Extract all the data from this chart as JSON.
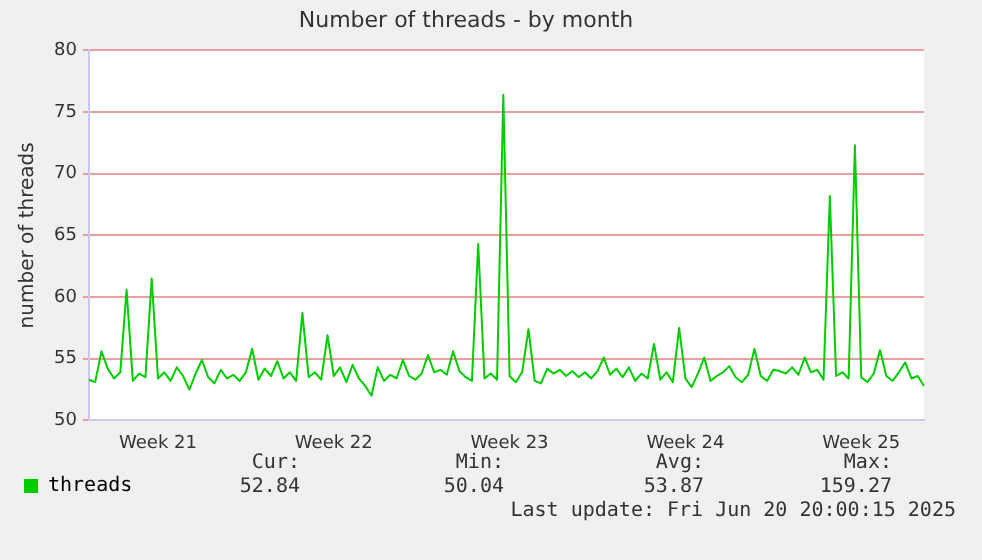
{
  "chart_data": {
    "type": "line",
    "title": "Number of threads - by month",
    "ylabel": "number of threads",
    "categories": [
      null,
      null,
      null,
      null,
      null,
      null,
      null,
      null,
      null,
      null,
      null,
      "Week 21",
      null,
      null,
      null,
      null,
      null,
      null,
      null,
      null,
      null,
      null,
      null,
      null,
      null,
      null,
      null,
      null,
      null,
      null,
      null,
      null,
      null,
      null,
      null,
      null,
      null,
      null,
      null,
      "Week 22",
      null,
      null,
      null,
      null,
      null,
      null,
      null,
      null,
      null,
      null,
      null,
      null,
      null,
      null,
      null,
      null,
      null,
      null,
      null,
      null,
      null,
      null,
      null,
      null,
      null,
      null,
      null,
      "Week 23",
      null,
      null,
      null,
      null,
      null,
      null,
      null,
      null,
      null,
      null,
      null,
      null,
      null,
      null,
      null,
      null,
      null,
      null,
      null,
      null,
      null,
      null,
      null,
      null,
      null,
      null,
      null,
      "Week 24",
      null,
      null,
      null,
      null,
      null,
      null,
      null,
      null,
      null,
      null,
      null,
      null,
      null,
      null,
      null,
      null,
      null,
      null,
      null,
      null,
      null,
      null,
      null,
      null,
      null,
      null,
      null,
      "Week 25",
      null,
      null,
      null,
      null,
      null,
      null,
      null,
      null,
      null,
      null
    ],
    "ylim": [
      50,
      80
    ],
    "yticks": [
      50,
      55,
      60,
      65,
      70,
      75,
      80
    ],
    "grid": "y",
    "legend": "bottom left",
    "marker": "none",
    "line_style": "solid",
    "series": [
      {
        "name": "threads",
        "color": "#00cc00",
        "values": [
          53.3,
          53.1,
          55.6,
          54.2,
          53.4,
          53.9,
          60.6,
          53.2,
          53.8,
          53.5,
          61.5,
          53.4,
          53.9,
          53.2,
          54.3,
          53.6,
          52.5,
          53.8,
          54.9,
          53.5,
          53.0,
          54.1,
          53.4,
          53.7,
          53.2,
          53.9,
          55.8,
          53.3,
          54.2,
          53.6,
          54.8,
          53.4,
          53.9,
          53.2,
          58.7,
          53.5,
          53.9,
          53.3,
          56.9,
          53.6,
          54.3,
          53.1,
          54.5,
          53.4,
          52.8,
          52.0,
          54.3,
          53.2,
          53.7,
          53.4,
          54.9,
          53.6,
          53.3,
          53.8,
          55.3,
          53.9,
          54.1,
          53.7,
          55.6,
          54.0,
          53.5,
          53.2,
          64.3,
          53.4,
          53.8,
          53.3,
          76.4,
          53.6,
          53.1,
          53.9,
          57.4,
          53.2,
          53.0,
          54.2,
          53.8,
          54.1,
          53.6,
          54.0,
          53.5,
          53.9,
          53.4,
          54.0,
          55.1,
          53.7,
          54.2,
          53.5,
          54.3,
          53.2,
          53.8,
          53.4,
          56.2,
          53.3,
          53.9,
          53.1,
          57.5,
          53.4,
          52.7,
          53.8,
          55.1,
          53.2,
          53.6,
          53.9,
          54.4,
          53.5,
          53.1,
          53.7,
          55.8,
          53.6,
          53.2,
          54.1,
          54.0,
          53.8,
          54.3,
          53.7,
          55.1,
          53.9,
          54.1,
          53.3,
          68.2,
          53.6,
          53.9,
          53.4,
          72.3,
          53.5,
          53.1,
          53.8,
          55.7,
          53.6,
          53.2,
          53.9,
          54.7,
          53.4,
          53.6,
          52.8
        ]
      }
    ],
    "annotations": [
      "Cur:",
      "52.84",
      "Min:",
      "50.04",
      "Avg:",
      "53.87",
      "Max:",
      "159.27",
      "Last update: Fri Jun 20 20:00:15 2025"
    ]
  }
}
